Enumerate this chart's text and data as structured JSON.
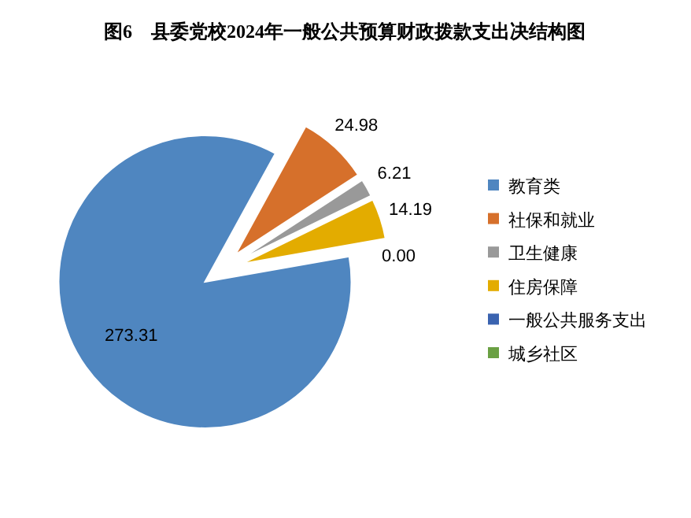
{
  "chart_data": {
    "type": "pie",
    "title": "图6　县委党校2024年一般公共预算财政拨款支出决结构图",
    "categories": [
      "教育类",
      "社保和就业",
      "卫生健康",
      "住房保障",
      "一般公共服务支出",
      "城乡社区"
    ],
    "values": [
      273.31,
      24.98,
      6.21,
      14.19,
      0,
      0
    ],
    "colors": [
      "#4f86c0",
      "#d6702b",
      "#999999",
      "#e3ac00",
      "#3a63b0",
      "#6aa043"
    ],
    "value_labels": [
      "273.31",
      "24.98",
      "6.21",
      "14.19",
      "0.00",
      null
    ],
    "legend": "right"
  }
}
